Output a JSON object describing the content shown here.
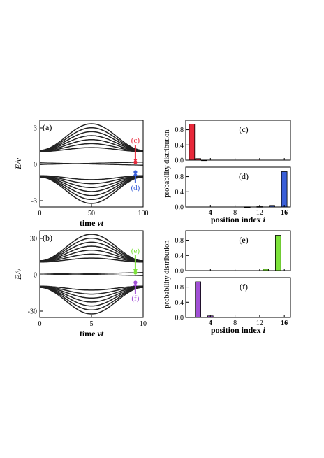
{
  "figure": {
    "energy_panels": [
      {
        "panel_label": "(a)",
        "ylabel": "E/ν",
        "xlabel_text": "time ",
        "xlabel_var": "νt",
        "x_ticks": [
          "0",
          "50",
          "100"
        ],
        "y_ticks": [
          "3",
          "0",
          "-3"
        ],
        "markers": [
          {
            "label": "(c)",
            "color": "#e8283a"
          },
          {
            "label": "(d)",
            "color": "#3a5fd8"
          }
        ]
      },
      {
        "panel_label": "(b)",
        "ylabel": "E/ν",
        "xlabel_text": "time ",
        "xlabel_var": "νt",
        "x_ticks": [
          "0",
          "5",
          "10"
        ],
        "y_ticks": [
          "30",
          "0",
          "-30"
        ],
        "markers": [
          {
            "label": "(e)",
            "color": "#7ce23a"
          },
          {
            "label": "(f)",
            "color": "#a14fd6"
          }
        ]
      }
    ],
    "distribution_panels": [
      {
        "panel_label": "(c)",
        "y_ticks": [
          "0.8",
          "0.4",
          "0.0"
        ],
        "color": "#e8283a",
        "x_ticks": []
      },
      {
        "panel_label": "(d)",
        "y_ticks": [
          "0.8",
          "0.4",
          "0.0"
        ],
        "color": "#3a5fd8",
        "x_ticks": [
          "4",
          "8",
          "12",
          "16"
        ]
      },
      {
        "panel_label": "(e)",
        "y_ticks": [
          "0.8",
          "0.4",
          "0.0"
        ],
        "color": "#7ce23a",
        "x_ticks": []
      },
      {
        "panel_label": "(f)",
        "y_ticks": [
          "0.8",
          "0.4",
          "0.0"
        ],
        "color": "#a14fd6",
        "x_ticks": [
          "4",
          "8",
          "12",
          "16"
        ]
      }
    ],
    "distribution_ylabel": "probability distribution",
    "distribution_xlabel_text": "position index ",
    "distribution_xlabel_var": "i"
  },
  "chart_data": [
    {
      "type": "line",
      "panel": "(a)",
      "xlim": [
        0,
        100
      ],
      "ylim": [
        -3.6,
        3.6
      ],
      "band_gap_edge": [
        1.0,
        0.1
      ],
      "top_band_peak_at_x": 50,
      "top_band_max": 3.2,
      "bottom_band_trough_at_x": 50,
      "bottom_band_min": -3.2,
      "lines_per_band": 7
    },
    {
      "type": "line",
      "panel": "(b)",
      "xlim": [
        0,
        10
      ],
      "ylim": [
        -36,
        36
      ],
      "band_gap_edge": [
        10,
        1
      ],
      "top_band_peak_at_x": 5,
      "top_band_max": 32,
      "bottom_band_trough_at_x": 5,
      "bottom_band_min": -32,
      "lines_per_band": 7
    },
    {
      "type": "bar",
      "panel": "(c)",
      "x": [
        1,
        2,
        3,
        4,
        5,
        6,
        7,
        8,
        9,
        10,
        11,
        12,
        13,
        14,
        15,
        16
      ],
      "values": [
        0.95,
        0.04,
        0.002,
        0,
        0,
        0,
        0,
        0,
        0,
        0,
        0,
        0,
        0,
        0,
        0,
        0
      ],
      "xlim": [
        0,
        17
      ],
      "ylim": [
        0,
        1.05
      ]
    },
    {
      "type": "bar",
      "panel": "(d)",
      "x": [
        1,
        2,
        3,
        4,
        5,
        6,
        7,
        8,
        9,
        10,
        11,
        12,
        13,
        14,
        15,
        16
      ],
      "values": [
        0,
        0,
        0,
        0,
        0,
        0,
        0,
        0,
        0,
        0.003,
        0,
        0.01,
        0,
        0.04,
        0,
        0.93
      ],
      "xlim": [
        0,
        17
      ],
      "ylim": [
        0,
        1.05
      ]
    },
    {
      "type": "bar",
      "panel": "(e)",
      "x": [
        1,
        2,
        3,
        4,
        5,
        6,
        7,
        8,
        9,
        10,
        11,
        12,
        13,
        14,
        15,
        16
      ],
      "values": [
        0,
        0,
        0,
        0,
        0,
        0,
        0,
        0,
        0,
        0,
        0,
        0,
        0.04,
        0,
        0.93,
        0
      ],
      "xlim": [
        0,
        17
      ],
      "ylim": [
        0,
        1.05
      ]
    },
    {
      "type": "bar",
      "panel": "(f)",
      "x": [
        1,
        2,
        3,
        4,
        5,
        6,
        7,
        8,
        9,
        10,
        11,
        12,
        13,
        14,
        15,
        16
      ],
      "values": [
        0,
        0.94,
        0,
        0.04,
        0,
        0,
        0,
        0,
        0,
        0,
        0,
        0,
        0,
        0,
        0,
        0
      ],
      "xlim": [
        0,
        17
      ],
      "ylim": [
        0,
        1.05
      ]
    }
  ]
}
